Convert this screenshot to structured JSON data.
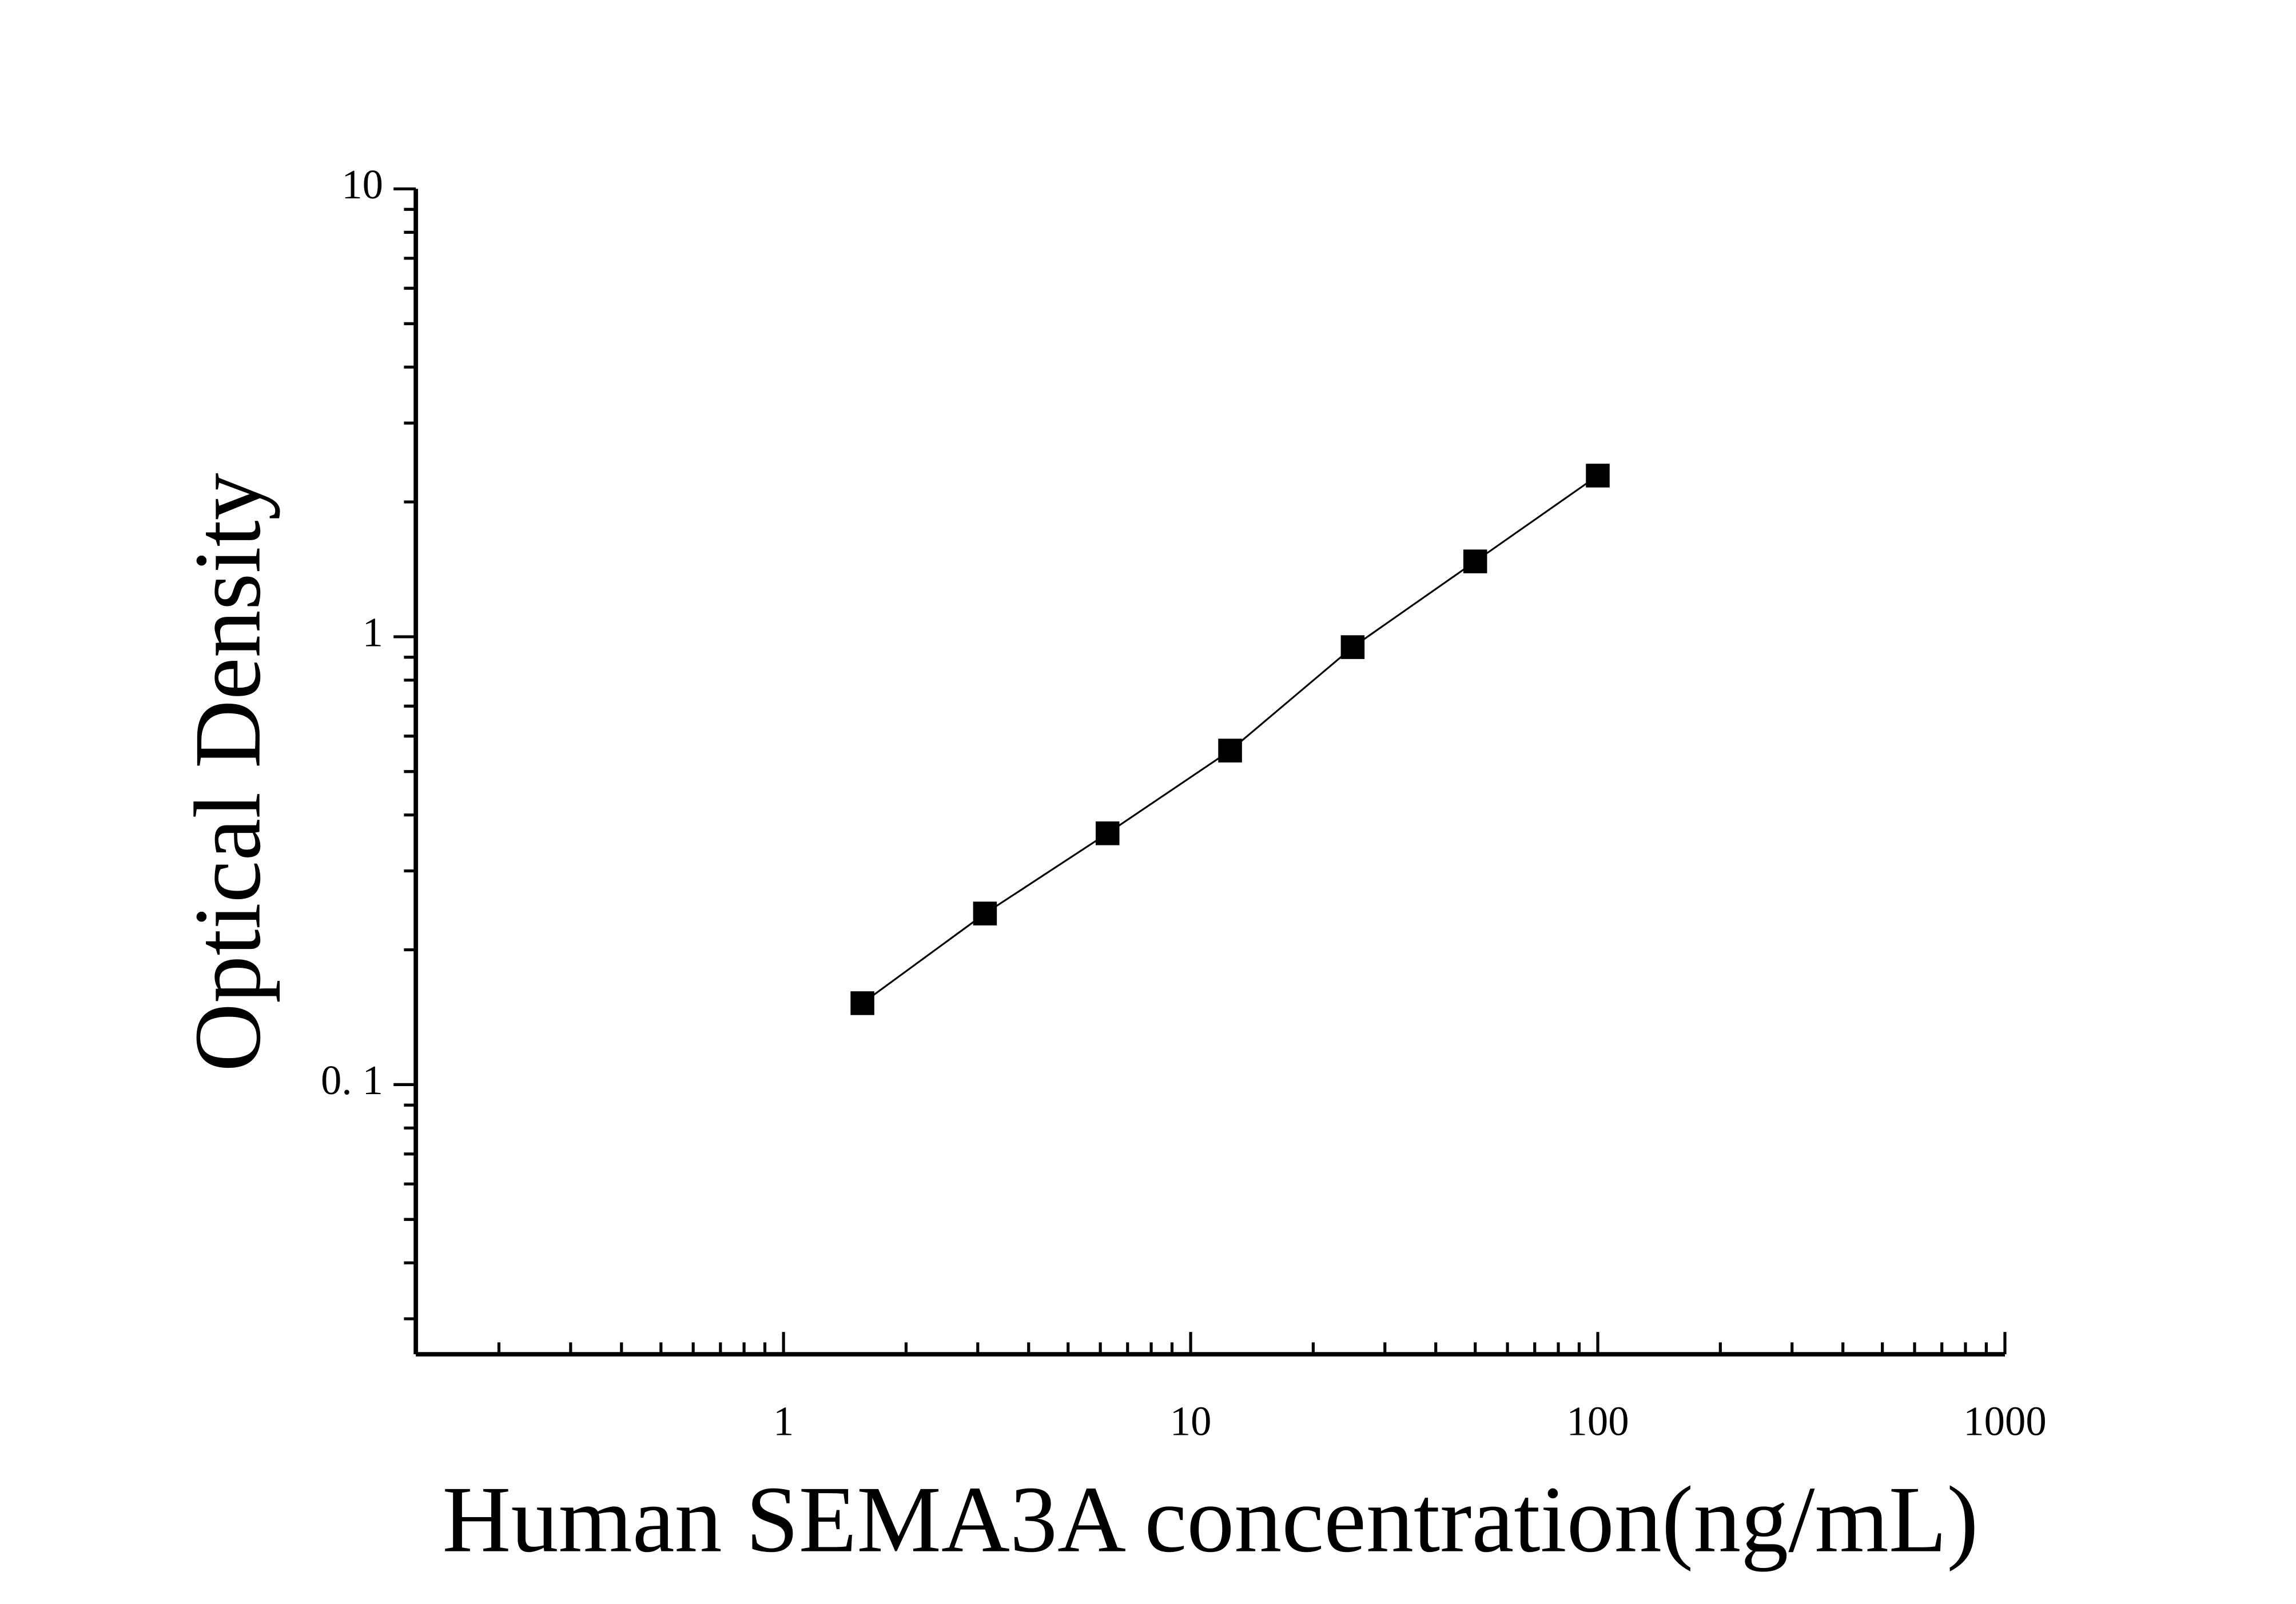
{
  "chart_data": {
    "type": "scatter",
    "x_label": "Human SEMA3A concentration(ng/mL)",
    "y_label": "Optical Density",
    "x": [
      1.5625,
      3.125,
      6.25,
      12.5,
      25,
      50,
      100
    ],
    "series": [
      {
        "color": "#000000",
        "values": [
          0.152,
          0.241,
          0.364,
          0.557,
          0.948,
          1.473,
          2.29
        ]
      }
    ],
    "xlim": [
      0.125,
      1000
    ],
    "ylim": [
      0.025,
      10
    ],
    "xticks": [
      1,
      10,
      100,
      1000
    ],
    "yticks": [
      {
        "value": 0.1,
        "label": "0. 1"
      },
      1,
      10
    ],
    "xscale": "log",
    "yscale": "log",
    "fit_line": true
  }
}
